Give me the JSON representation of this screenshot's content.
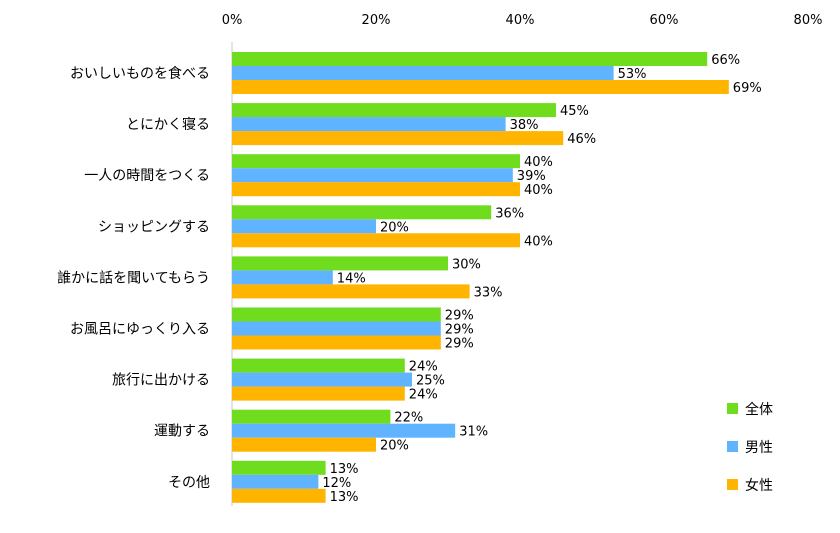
{
  "chart_data": {
    "type": "bar",
    "orientation": "horizontal",
    "categories": [
      "おいしいものを食べる",
      "とにかく寝る",
      "一人の時間をつくる",
      "ショッピングする",
      "誰かに話を聞いてもらう",
      "お風呂にゆっくり入る",
      "旅行に出かける",
      "運動する",
      "その他"
    ],
    "series": [
      {
        "name": "全体",
        "color": "#6FDC1E",
        "values": [
          66,
          45,
          40,
          36,
          30,
          29,
          24,
          22,
          13
        ]
      },
      {
        "name": "男性",
        "color": "#5FB3FF",
        "values": [
          53,
          38,
          39,
          20,
          14,
          29,
          25,
          31,
          12
        ]
      },
      {
        "name": "女性",
        "color": "#FFB400",
        "values": [
          69,
          46,
          40,
          40,
          33,
          29,
          24,
          20,
          13
        ]
      }
    ],
    "xlim": [
      0,
      80
    ],
    "x_ticks": [
      "0%",
      "20%",
      "40%",
      "60%",
      "80%"
    ],
    "x_tick_values": [
      0,
      20,
      40,
      60,
      80
    ],
    "value_suffix": "%",
    "axis_position": "top",
    "grid": false,
    "legend_position": "right-bottom"
  }
}
